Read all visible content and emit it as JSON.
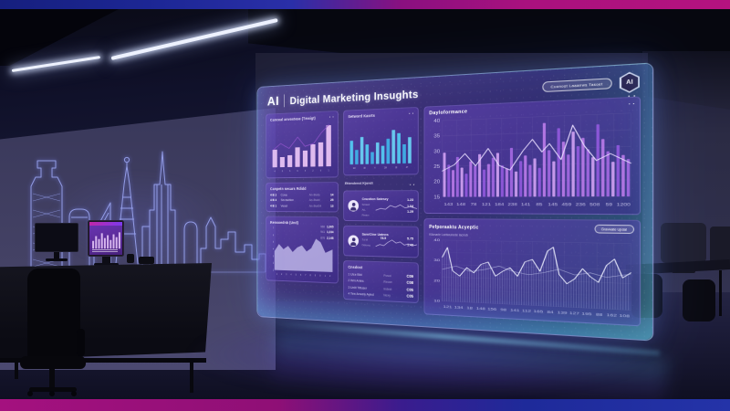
{
  "scene": {
    "top_bar_gradient": [
      "#161f7e",
      "#2a2fa8",
      "#8a1080",
      "#b5127f"
    ],
    "bottom_bar_gradient": [
      "#a4117f",
      "#8f0f76",
      "#1e2a9a",
      "#2433a8"
    ],
    "skyline_color": "#9aa4f0",
    "desk_monitor": {
      "screen_color": "#5a2a96",
      "chart": {
        "type": "bars",
        "bars": [
          40,
          65,
          50,
          80,
          55,
          70,
          45,
          75,
          60,
          85
        ],
        "bar_color": "#e2c2f6",
        "vh": 40
      }
    }
  },
  "panel": {
    "logo": "AI",
    "title": "Digital Marketing Insughts",
    "header_button_label": "Cuonost Laaanws Tasoet",
    "badge_label": "AI",
    "menu_dots": "• •",
    "cards": {
      "campaign": {
        "title": "Canceal anvostese (Tmsigt)",
        "chart": {
          "type": "barsline",
          "bars": [
            42,
            24,
            28,
            46,
            38,
            52,
            56,
            95
          ],
          "bar_color": "#ecc6f6",
          "line": [
            [
              4,
              58
            ],
            [
              16,
              44
            ],
            [
              30,
              56
            ],
            [
              44,
              30
            ],
            [
              56,
              52
            ],
            [
              70,
              46
            ],
            [
              82,
              22
            ],
            [
              94,
              4
            ]
          ],
          "line_color": "#8d52c9",
          "line_w": 0.9,
          "xlabels": [
            "4",
            "8",
            "3",
            "6",
            "4",
            "2",
            "6",
            "1"
          ]
        }
      },
      "table": {
        "title": "Canpetn secars Rdidd",
        "rows": [
          {
            "id": "4 B 2",
            "name": "Cova",
            "mid": "An-Bwta",
            "val": "14"
          },
          {
            "id": "4 B 4",
            "name": "Secradtion",
            "mid": "An-Bwtd",
            "val": "25"
          },
          {
            "id": "4 B 1",
            "name": "Veset",
            "mid": "An-Bwt04",
            "val": "13"
          }
        ]
      },
      "reach": {
        "title": "Rensoednb (Und)",
        "stats": [
          [
            "960",
            "1,005"
          ],
          [
            "941",
            "1,234"
          ],
          [
            "876",
            "2,148"
          ]
        ],
        "chart": {
          "type": "area",
          "area": [
            [
              0,
              55
            ],
            [
              8,
              38
            ],
            [
              16,
              50
            ],
            [
              24,
              42
            ],
            [
              32,
              56
            ],
            [
              40,
              45
            ],
            [
              48,
              40
            ],
            [
              56,
              54
            ],
            [
              64,
              46
            ],
            [
              72,
              24
            ],
            [
              80,
              32
            ],
            [
              88,
              56
            ],
            [
              100,
              48
            ]
          ],
          "area_fill": "#c3bcec",
          "ylabels": [
            "7",
            "6",
            "5",
            "4",
            "3",
            "2",
            "1"
          ],
          "xlabels": [
            "1",
            "2",
            "3",
            "4",
            "5",
            "6",
            "7",
            "8",
            "9",
            "0",
            "1",
            "2"
          ]
        }
      },
      "network": {
        "title": "Setword Kasrts",
        "chart": {
          "type": "bars",
          "bars": [
            56,
            34,
            64,
            46,
            28,
            50,
            42,
            58,
            78,
            70,
            44,
            60
          ],
          "bar_colors": [
            "#54cdf4",
            "#3fb4ea",
            "#6ad4f6"
          ],
          "xlabels": [
            "1M",
            "38",
            "4",
            "2M",
            "18",
            "4T"
          ]
        }
      },
      "section_label": "Ettendenst Kjondi",
      "kpi1": {
        "title": "Cnustion Sateszy",
        "labels": [
          "Sctaed",
          "AtL",
          "Reaim"
        ],
        "values": [
          "1.23",
          "1.04",
          "1.29"
        ],
        "chart": {
          "type": "line",
          "vh": 30,
          "line_w": 1.2,
          "line_color": "#d9d0f5",
          "line": [
            [
              0,
              70
            ],
            [
              12,
              55
            ],
            [
              24,
              62
            ],
            [
              36,
              30
            ],
            [
              48,
              45
            ],
            [
              60,
              25
            ],
            [
              72,
              50
            ],
            [
              84,
              40
            ],
            [
              100,
              55
            ]
          ]
        }
      },
      "kpi2": {
        "title": "Sam/Ctne Uatews",
        "labels": [
          "Td M",
          "Ddtcwg"
        ],
        "peak": "78.5",
        "values": [
          "5.75",
          "1.48"
        ],
        "chart": {
          "type": "line",
          "vh": 30,
          "line_w": 1.2,
          "line_color": "#d9d0f5",
          "line": [
            [
              0,
              75
            ],
            [
              10,
              60
            ],
            [
              20,
              68
            ],
            [
              30,
              40
            ],
            [
              40,
              20
            ],
            [
              50,
              45
            ],
            [
              60,
              35
            ],
            [
              70,
              60
            ],
            [
              80,
              50
            ],
            [
              90,
              65
            ],
            [
              100,
              55
            ]
          ]
        }
      },
      "channels": {
        "title": "Cnsdost",
        "rows": [
          {
            "name": "1 Ulce Bild",
            "mid": "Posai",
            "val": "C09"
          },
          {
            "name": "2 Wm Anles",
            "mid": "Recwr",
            "val": "C08"
          },
          {
            "name": "3 Unlit Tittuser",
            "mid": "Indest",
            "val": "C05"
          },
          {
            "name": "4 Tew Anwely Ayled",
            "mid": "Nexy",
            "val": "C05"
          }
        ]
      },
      "performance": {
        "title": "Dayloformance",
        "chart": {
          "type": "barsline",
          "grid": true,
          "bars": [
            58,
            42,
            35,
            52,
            38,
            30,
            46,
            40,
            55,
            35,
            42,
            50,
            56,
            40,
            36,
            62,
            32,
            45,
            52,
            40,
            48,
            36,
            92,
            58,
            44,
            85,
            68,
            52,
            80,
            62,
            72,
            58,
            48,
            88,
            70,
            55,
            42,
            62,
            50,
            45
          ],
          "bar_colors": [
            "#cf9ff2",
            "#9159dd",
            "#b87ae8",
            "#a368e2"
          ],
          "line": [
            [
              0,
              66
            ],
            [
              7,
              58
            ],
            [
              13,
              44
            ],
            [
              19,
              60
            ],
            [
              26,
              38
            ],
            [
              32,
              60
            ],
            [
              38,
              66
            ],
            [
              45,
              42
            ],
            [
              50,
              28
            ],
            [
              55,
              44
            ],
            [
              59,
              34
            ],
            [
              65,
              54
            ],
            [
              71,
              12
            ],
            [
              77,
              38
            ],
            [
              83,
              56
            ],
            [
              90,
              48
            ],
            [
              100,
              60
            ]
          ],
          "line_color": "#e9ddff",
          "line_w": 0.5,
          "ylabels": [
            "40",
            "35",
            "30",
            "25",
            "20",
            "15"
          ],
          "xlabels": [
            "143",
            "148",
            "78",
            "121",
            "184",
            "238",
            "141",
            "85",
            "145",
            "459",
            "236",
            "508",
            "59",
            "1200"
          ]
        }
      },
      "analytics": {
        "title": "Pefporaaktu Acyeptic",
        "button_label": "Gravwate Updat",
        "subtitle": "Kilcnarie Lantwunede lacnob",
        "chart": {
          "type": "lines",
          "grid": true,
          "hatch": true,
          "line": [
            [
              0,
              28
            ],
            [
              3,
              12
            ],
            [
              6,
              50
            ],
            [
              10,
              58
            ],
            [
              14,
              44
            ],
            [
              18,
              52
            ],
            [
              22,
              38
            ],
            [
              26,
              34
            ],
            [
              30,
              56
            ],
            [
              34,
              48
            ],
            [
              38,
              42
            ],
            [
              42,
              55
            ],
            [
              46,
              32
            ],
            [
              50,
              28
            ],
            [
              54,
              46
            ],
            [
              58,
              14
            ],
            [
              61,
              8
            ],
            [
              64,
              50
            ],
            [
              68,
              64
            ],
            [
              72,
              56
            ],
            [
              76,
              40
            ],
            [
              80,
              52
            ],
            [
              84,
              60
            ],
            [
              88,
              34
            ],
            [
              92,
              24
            ],
            [
              96,
              52
            ],
            [
              100,
              44
            ]
          ],
          "line_color": "#eef0ff",
          "line_w": 0.5,
          "line2": [
            [
              0,
              48
            ],
            [
              8,
              42
            ],
            [
              16,
              50
            ],
            [
              24,
              46
            ],
            [
              32,
              40
            ],
            [
              40,
              48
            ],
            [
              48,
              52
            ],
            [
              56,
              48
            ],
            [
              64,
              42
            ],
            [
              72,
              50
            ],
            [
              80,
              46
            ],
            [
              88,
              52
            ],
            [
              96,
              48
            ],
            [
              100,
              46
            ]
          ],
          "line2_color": "rgba(222,226,255,0.6)",
          "ylabels": [
            "40",
            "30",
            "20",
            "10"
          ],
          "xlabels": [
            "121",
            "134",
            "18",
            "148",
            "156",
            "98",
            "141",
            "112",
            "165",
            "84",
            "139",
            "127",
            "195",
            "88",
            "162",
            "108"
          ]
        }
      }
    }
  }
}
